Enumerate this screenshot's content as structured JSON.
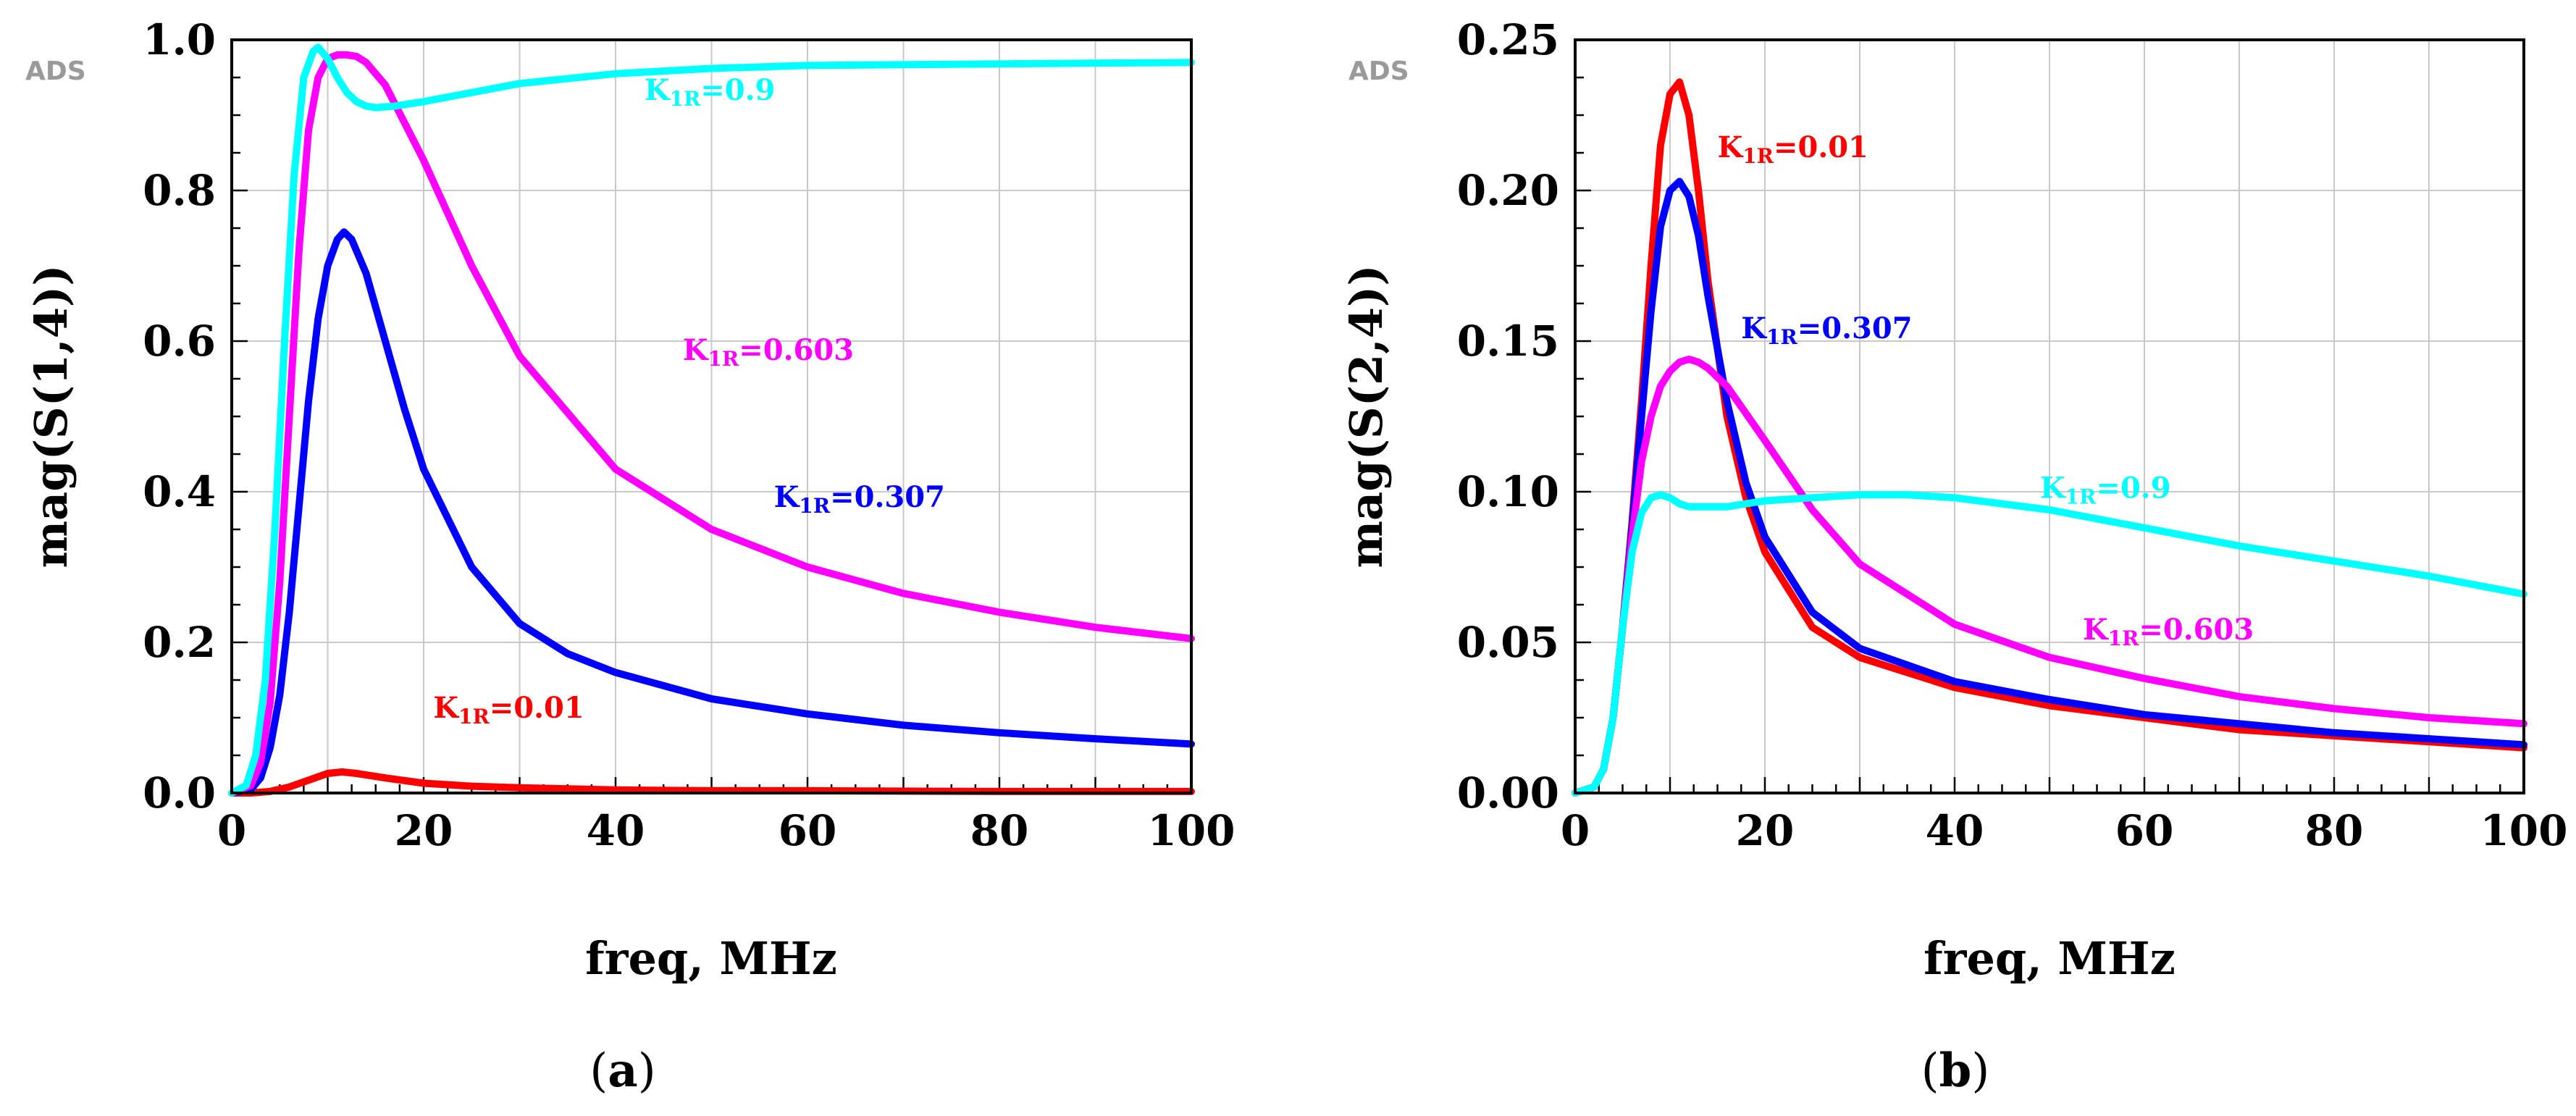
{
  "figure": {
    "watermark": "ADS",
    "xlabel": "freq, MHz"
  },
  "chart_data": [
    {
      "id": "a",
      "type": "line",
      "caption": "a",
      "title": "",
      "xlabel": "freq, MHz",
      "ylabel": "mag(S(1,4))",
      "xlim": [
        0,
        100
      ],
      "ylim": [
        0,
        1.0
      ],
      "xticks": [
        0,
        20,
        40,
        60,
        80,
        100
      ],
      "xtick_labels": [
        "0",
        "20",
        "40",
        "60",
        "80",
        "100"
      ],
      "yticks": [
        0,
        0.2,
        0.4,
        0.6,
        0.8,
        1.0
      ],
      "ytick_labels": [
        "0.0",
        "0.2",
        "0.4",
        "0.6",
        "0.8",
        "1.0"
      ],
      "grid": true,
      "series": [
        {
          "name": "K1R=0.01",
          "label_main": "K",
          "label_sub": "1R",
          "label_value": "=0.01",
          "color": "#ff0000",
          "x": [
            0,
            2,
            4,
            6,
            8,
            10,
            11.5,
            13,
            16,
            20,
            25,
            30,
            40,
            50,
            60,
            80,
            100
          ],
          "y": [
            0,
            0.0,
            0.002,
            0.008,
            0.017,
            0.026,
            0.028,
            0.026,
            0.02,
            0.013,
            0.009,
            0.007,
            0.004,
            0.003,
            0.003,
            0.002,
            0.002
          ],
          "label_at": [
            21,
            0.1
          ]
        },
        {
          "name": "K1R=0.307",
          "label_main": "K",
          "label_sub": "1R",
          "label_value": "=0.307",
          "color": "#0000ff",
          "x": [
            0,
            2,
            3,
            4,
            5,
            6,
            7,
            8,
            9,
            10,
            11,
            11.7,
            12.5,
            14,
            16,
            18,
            20,
            25,
            30,
            35,
            40,
            50,
            60,
            70,
            80,
            90,
            100
          ],
          "y": [
            0,
            0.005,
            0.02,
            0.06,
            0.13,
            0.24,
            0.38,
            0.52,
            0.63,
            0.7,
            0.735,
            0.745,
            0.735,
            0.69,
            0.6,
            0.51,
            0.43,
            0.3,
            0.225,
            0.185,
            0.16,
            0.125,
            0.105,
            0.09,
            0.08,
            0.072,
            0.065
          ],
          "label_at": [
            56.5,
            0.38
          ]
        },
        {
          "name": "K1R=0.603",
          "label_main": "K",
          "label_sub": "1R",
          "label_value": "=0.603",
          "color": "#ff00ff",
          "x": [
            0,
            2,
            3,
            4,
            5,
            6,
            7,
            8,
            9,
            10,
            11,
            12,
            13,
            14,
            16,
            20,
            25,
            30,
            40,
            50,
            60,
            70,
            80,
            90,
            100
          ],
          "y": [
            0,
            0.01,
            0.04,
            0.12,
            0.28,
            0.5,
            0.72,
            0.88,
            0.95,
            0.975,
            0.98,
            0.98,
            0.978,
            0.97,
            0.94,
            0.84,
            0.7,
            0.58,
            0.43,
            0.35,
            0.3,
            0.265,
            0.24,
            0.22,
            0.205
          ],
          "label_at": [
            47,
            0.575
          ]
        },
        {
          "name": "K1R=0.9",
          "label_main": "K",
          "label_sub": "1R",
          "label_value": "=0.9",
          "color": "#00ffff",
          "x": [
            0,
            1.5,
            2.5,
            3.5,
            4.5,
            5.5,
            6.5,
            7.5,
            8.5,
            9,
            10,
            11,
            12,
            13,
            14,
            15,
            17,
            20,
            25,
            30,
            40,
            50,
            60,
            80,
            100
          ],
          "y": [
            0,
            0.01,
            0.05,
            0.15,
            0.35,
            0.6,
            0.82,
            0.95,
            0.985,
            0.99,
            0.975,
            0.95,
            0.93,
            0.918,
            0.912,
            0.91,
            0.912,
            0.918,
            0.93,
            0.942,
            0.955,
            0.962,
            0.966,
            0.968,
            0.97
          ],
          "label_at": [
            43,
            0.92
          ]
        }
      ]
    },
    {
      "id": "b",
      "type": "line",
      "caption": "b",
      "title": "",
      "xlabel": "freq, MHz",
      "ylabel": "mag(S(2,4))",
      "xlim": [
        0,
        100
      ],
      "ylim": [
        0,
        0.25
      ],
      "xticks": [
        0,
        20,
        40,
        60,
        80,
        100
      ],
      "xtick_labels": [
        "0",
        "20",
        "40",
        "60",
        "80",
        "100"
      ],
      "yticks": [
        0,
        0.05,
        0.1,
        0.15,
        0.2,
        0.25
      ],
      "ytick_labels": [
        "0.00",
        "0.05",
        "0.10",
        "0.15",
        "0.20",
        "0.25"
      ],
      "grid": true,
      "series": [
        {
          "name": "K1R=0.01",
          "label_main": "K",
          "label_sub": "1R",
          "label_value": "=0.01",
          "color": "#ff0000",
          "x": [
            0,
            2,
            3,
            4,
            5,
            6,
            7,
            8,
            9,
            10,
            11,
            12,
            13,
            14,
            16,
            18,
            20,
            25,
            30,
            40,
            50,
            60,
            70,
            80,
            90,
            100
          ],
          "y": [
            0,
            0.002,
            0.008,
            0.025,
            0.055,
            0.09,
            0.13,
            0.175,
            0.215,
            0.232,
            0.236,
            0.225,
            0.2,
            0.17,
            0.125,
            0.098,
            0.08,
            0.055,
            0.045,
            0.035,
            0.029,
            0.025,
            0.021,
            0.019,
            0.017,
            0.015
          ],
          "label_at": [
            15,
            0.211
          ]
        },
        {
          "name": "K1R=0.307",
          "label_main": "K",
          "label_sub": "1R",
          "label_value": "=0.307",
          "color": "#0000ff",
          "x": [
            0,
            2,
            3,
            4,
            5,
            6,
            7,
            8,
            9,
            10,
            11,
            12,
            13,
            14,
            16,
            18,
            20,
            25,
            30,
            40,
            50,
            60,
            70,
            80,
            90,
            100
          ],
          "y": [
            0,
            0.002,
            0.008,
            0.025,
            0.055,
            0.088,
            0.125,
            0.16,
            0.188,
            0.2,
            0.203,
            0.198,
            0.185,
            0.165,
            0.13,
            0.103,
            0.085,
            0.06,
            0.048,
            0.037,
            0.031,
            0.026,
            0.023,
            0.02,
            0.018,
            0.016
          ],
          "label_at": [
            17.5,
            0.151
          ]
        },
        {
          "name": "K1R=0.603",
          "label_main": "K",
          "label_sub": "1R",
          "label_value": "=0.603",
          "color": "#ff00ff",
          "x": [
            0,
            2,
            3,
            4,
            5,
            6,
            7,
            8,
            9,
            10,
            11,
            12,
            13,
            14,
            16,
            18,
            20,
            25,
            30,
            40,
            50,
            60,
            70,
            80,
            90,
            100
          ],
          "y": [
            0,
            0.002,
            0.008,
            0.025,
            0.055,
            0.085,
            0.11,
            0.125,
            0.135,
            0.14,
            0.143,
            0.144,
            0.143,
            0.141,
            0.135,
            0.126,
            0.117,
            0.094,
            0.076,
            0.056,
            0.045,
            0.038,
            0.032,
            0.028,
            0.025,
            0.023
          ],
          "label_at": [
            53.5,
            0.051
          ]
        },
        {
          "name": "K1R=0.9",
          "label_main": "K",
          "label_sub": "1R",
          "label_value": "=0.9",
          "color": "#00ffff",
          "x": [
            0,
            2,
            3,
            4,
            5,
            6,
            7,
            8,
            9,
            10,
            11,
            12,
            13,
            14,
            16,
            18,
            20,
            25,
            30,
            35,
            40,
            50,
            60,
            70,
            80,
            90,
            100
          ],
          "y": [
            0,
            0.002,
            0.008,
            0.025,
            0.055,
            0.08,
            0.093,
            0.098,
            0.099,
            0.098,
            0.096,
            0.095,
            0.095,
            0.095,
            0.095,
            0.096,
            0.097,
            0.098,
            0.099,
            0.099,
            0.098,
            0.094,
            0.088,
            0.082,
            0.077,
            0.072,
            0.066
          ],
          "label_at": [
            49,
            0.098
          ]
        }
      ]
    }
  ]
}
